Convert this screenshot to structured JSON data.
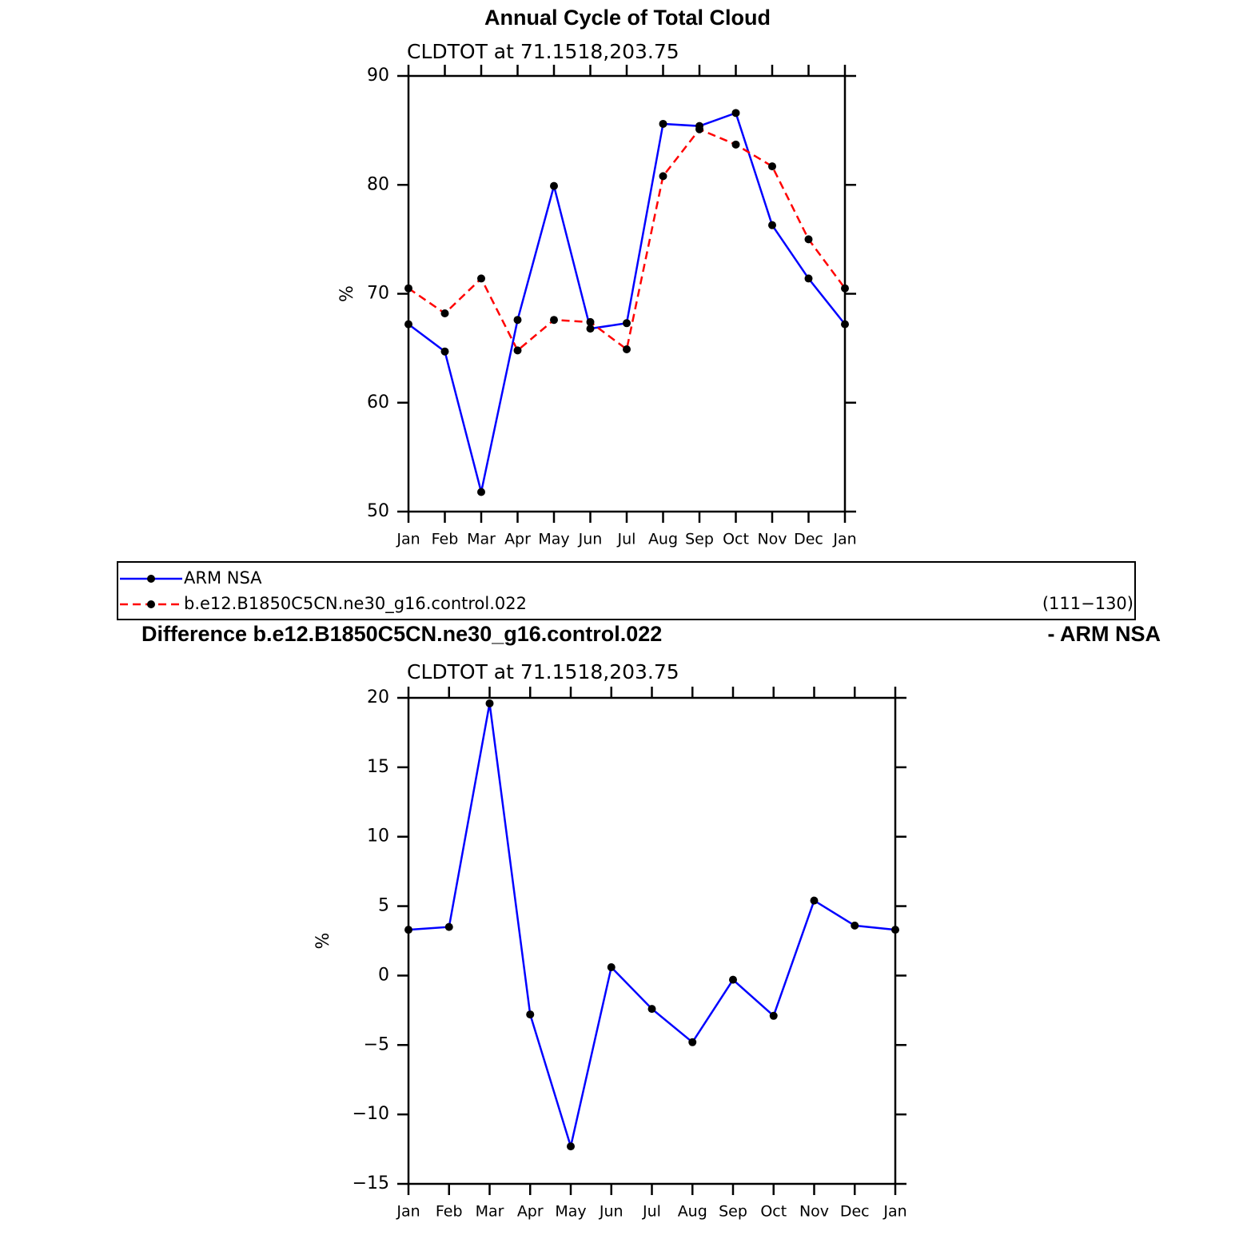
{
  "chart_data": [
    {
      "type": "line",
      "title": "Annual Cycle of Total Cloud",
      "subtitle": "CLDTOT at 71.1518,203.75",
      "ylabel": "%",
      "categories": [
        "Jan",
        "Feb",
        "Mar",
        "Apr",
        "May",
        "Jun",
        "Jul",
        "Aug",
        "Sep",
        "Oct",
        "Nov",
        "Dec",
        "Jan"
      ],
      "ylim": [
        50,
        90
      ],
      "yticks": [
        50,
        60,
        70,
        80,
        90
      ],
      "series": [
        {
          "name": "ARM NSA",
          "color": "#0000ff",
          "dashed": false,
          "values": [
            67.2,
            64.7,
            51.8,
            67.6,
            79.9,
            66.8,
            67.3,
            85.6,
            85.4,
            86.6,
            76.3,
            71.4,
            67.2
          ]
        },
        {
          "name": "b.e12.B1850C5CN.ne30_g16.control.022",
          "color": "#ff0000",
          "dashed": true,
          "values": [
            70.5,
            68.2,
            71.4,
            64.8,
            67.6,
            67.4,
            64.9,
            80.8,
            85.1,
            83.7,
            81.7,
            75.0,
            70.5
          ]
        }
      ],
      "marker_color": "#000000",
      "legend_note": "(111−130)"
    },
    {
      "type": "line",
      "title": "Difference b.e12.B1850C5CN.ne30_g16.control.022",
      "title_right": "- ARM NSA",
      "subtitle": "CLDTOT at 71.1518,203.75",
      "ylabel": "%",
      "categories": [
        "Jan",
        "Feb",
        "Mar",
        "Apr",
        "May",
        "Jun",
        "Jul",
        "Aug",
        "Sep",
        "Oct",
        "Nov",
        "Dec",
        "Jan"
      ],
      "ylim": [
        -15,
        20
      ],
      "yticks": [
        {
          "value": -15,
          "label": "−15"
        },
        {
          "value": -10,
          "label": "−10"
        },
        {
          "value": -5,
          "label": "−5"
        },
        0,
        5,
        10,
        15,
        20
      ],
      "values": [
        3.3,
        3.5,
        19.6,
        -2.8,
        -12.3,
        0.6,
        -2.4,
        -4.8,
        -0.3,
        -2.9,
        5.4,
        3.6,
        3.3
      ],
      "color": "#0000ff",
      "marker_color": "#000000"
    }
  ]
}
